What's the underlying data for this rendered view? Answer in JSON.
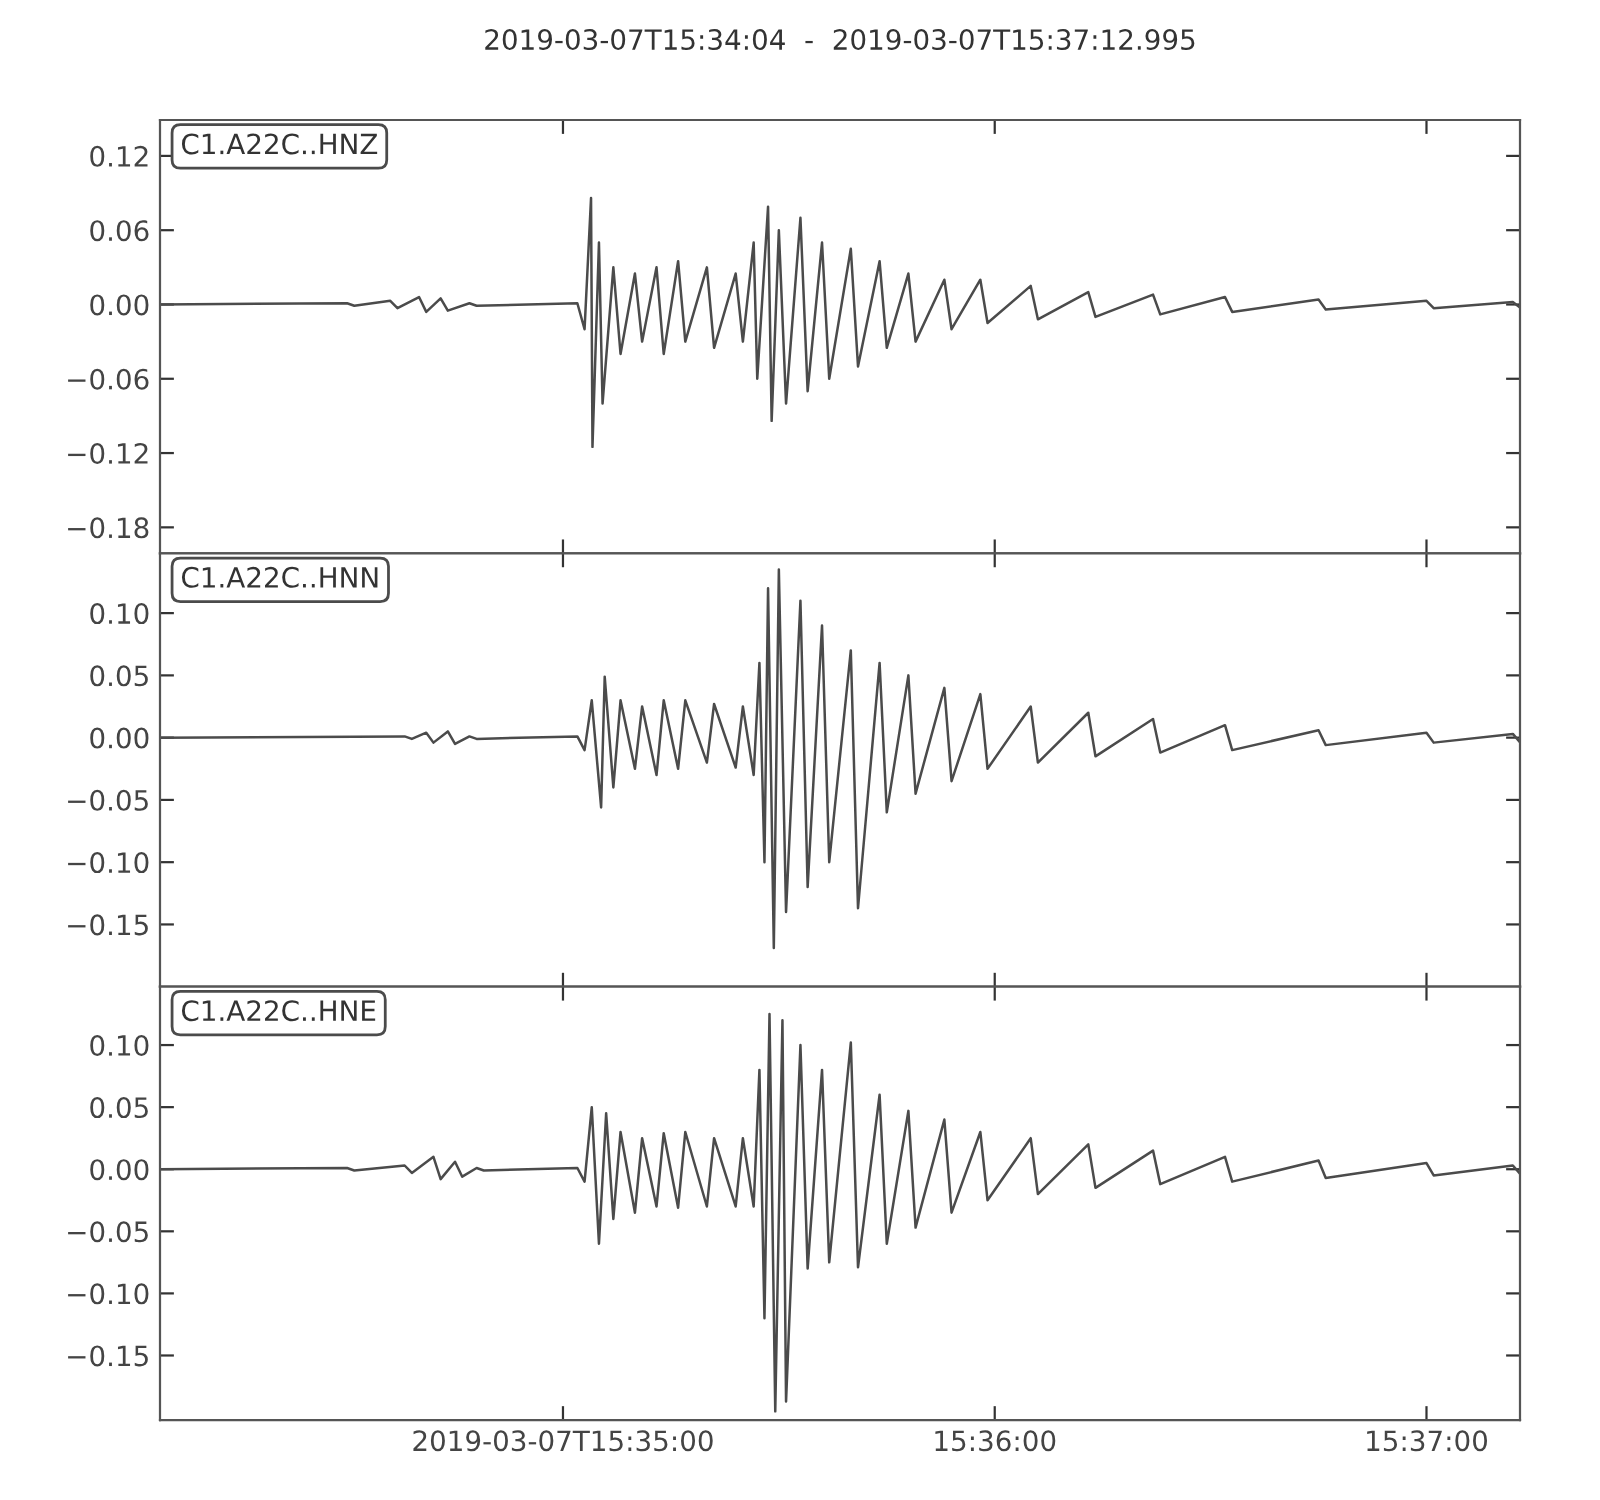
{
  "chart_data": [
    {
      "type": "line",
      "title": "2019-03-07T15:34:04  -  2019-03-07T15:37:12.995",
      "legend": "top left",
      "tick_labels": "y",
      "grid": false,
      "xlim": [
        "2019-03-07T15:34:04",
        "2019-03-07T15:37:12.995"
      ],
      "xticks": [
        {
          "value": "2019-03-07T15:35:00",
          "label": null
        },
        {
          "value": "2019-03-07T15:36:00",
          "label": null
        },
        {
          "value": "2019-03-07T15:37:00",
          "label": null
        }
      ],
      "ylim": [
        -0.201,
        0.149
      ],
      "yticks": [
        0.12,
        0.06,
        {
          "value": 0,
          "label": "0.00"
        },
        {
          "value": -0.06,
          "label": "−0.06"
        },
        {
          "value": -0.12,
          "label": "−0.12"
        },
        {
          "value": -0.18,
          "label": "−0.18"
        }
      ],
      "series": [
        {
          "name": "C1.A22C..HNZ",
          "color": "#4b4b4b",
          "x": [
            "2019-03-07T15:34:04",
            "2019-03-07T15:34:30",
            "2019-03-07T15:34:31",
            "2019-03-07T15:34:36",
            "2019-03-07T15:34:37",
            "2019-03-07T15:34:40",
            "2019-03-07T15:34:41",
            "2019-03-07T15:34:43",
            "2019-03-07T15:34:44",
            "2019-03-07T15:34:47",
            "2019-03-07T15:34:48",
            "2019-03-07T15:35:02",
            "2019-03-07T15:35:03",
            "2019-03-07T15:35:03.9",
            "2019-03-07T15:35:04.1",
            "2019-03-07T15:35:05",
            "2019-03-07T15:35:05.5",
            "2019-03-07T15:35:07",
            "2019-03-07T15:35:08",
            "2019-03-07T15:35:10",
            "2019-03-07T15:35:11",
            "2019-03-07T15:35:13",
            "2019-03-07T15:35:14",
            "2019-03-07T15:35:16",
            "2019-03-07T15:35:17",
            "2019-03-07T15:35:20",
            "2019-03-07T15:35:21",
            "2019-03-07T15:35:24",
            "2019-03-07T15:35:25",
            "2019-03-07T15:35:26.5",
            "2019-03-07T15:35:27",
            "2019-03-07T15:35:28.5",
            "2019-03-07T15:35:29",
            "2019-03-07T15:35:30",
            "2019-03-07T15:35:31",
            "2019-03-07T15:35:33",
            "2019-03-07T15:35:34",
            "2019-03-07T15:35:36",
            "2019-03-07T15:35:37",
            "2019-03-07T15:35:40",
            "2019-03-07T15:35:41",
            "2019-03-07T15:35:44",
            "2019-03-07T15:35:45",
            "2019-03-07T15:35:48",
            "2019-03-07T15:35:49",
            "2019-03-07T15:35:53",
            "2019-03-07T15:35:54",
            "2019-03-07T15:35:58",
            "2019-03-07T15:35:59",
            "2019-03-07T15:36:05",
            "2019-03-07T15:36:06",
            "2019-03-07T15:36:13",
            "2019-03-07T15:36:14",
            "2019-03-07T15:36:22",
            "2019-03-07T15:36:23",
            "2019-03-07T15:36:32",
            "2019-03-07T15:36:33",
            "2019-03-07T15:36:45",
            "2019-03-07T15:36:46",
            "2019-03-07T15:37:00",
            "2019-03-07T15:37:01",
            "2019-03-07T15:37:12",
            "2019-03-07T15:37:12.9"
          ],
          "values": [
            0,
            0.001,
            -0.001,
            0.003,
            -0.003,
            0.006,
            -0.006,
            0.005,
            -0.005,
            0.001,
            -0.001,
            0.001,
            -0.02,
            0.086,
            -0.115,
            0.05,
            -0.08,
            0.03,
            -0.04,
            0.025,
            -0.03,
            0.03,
            -0.04,
            0.035,
            -0.03,
            0.03,
            -0.035,
            0.025,
            -0.03,
            0.05,
            -0.06,
            0.079,
            -0.094,
            0.06,
            -0.08,
            0.07,
            -0.07,
            0.05,
            -0.06,
            0.045,
            -0.05,
            0.035,
            -0.035,
            0.025,
            -0.03,
            0.02,
            -0.02,
            0.02,
            -0.015,
            0.015,
            -0.012,
            0.01,
            -0.01,
            0.008,
            -0.008,
            0.006,
            -0.006,
            0.004,
            -0.004,
            0.003,
            -0.003,
            0.002,
            -0.002
          ]
        }
      ]
    },
    {
      "type": "line",
      "legend": "top left",
      "tick_labels": "y",
      "grid": false,
      "xlim": [
        "2019-03-07T15:34:04",
        "2019-03-07T15:37:12.995"
      ],
      "xticks": [
        {
          "value": "2019-03-07T15:35:00",
          "label": null
        },
        {
          "value": "2019-03-07T15:36:00",
          "label": null
        },
        {
          "value": "2019-03-07T15:37:00",
          "label": null
        }
      ],
      "ylim": [
        -0.2,
        0.148
      ],
      "yticks": [
        {
          "value": 0.1,
          "label": "0.10"
        },
        0.05,
        {
          "value": 0,
          "label": "0.00"
        },
        {
          "value": -0.05,
          "label": "−0.05"
        },
        {
          "value": -0.1,
          "label": "−0.10"
        },
        {
          "value": -0.15,
          "label": "−0.15"
        }
      ],
      "series": [
        {
          "name": "C1.A22C..HNN",
          "color": "#4b4b4b",
          "x": [
            "2019-03-07T15:34:04",
            "2019-03-07T15:34:38",
            "2019-03-07T15:34:39",
            "2019-03-07T15:34:41",
            "2019-03-07T15:34:42",
            "2019-03-07T15:34:44",
            "2019-03-07T15:34:45",
            "2019-03-07T15:34:47",
            "2019-03-07T15:34:48",
            "2019-03-07T15:35:02",
            "2019-03-07T15:35:03",
            "2019-03-07T15:35:04",
            "2019-03-07T15:35:05.3",
            "2019-03-07T15:35:05.8",
            "2019-03-07T15:35:07",
            "2019-03-07T15:35:08",
            "2019-03-07T15:35:10",
            "2019-03-07T15:35:11",
            "2019-03-07T15:35:13",
            "2019-03-07T15:35:14",
            "2019-03-07T15:35:16",
            "2019-03-07T15:35:17",
            "2019-03-07T15:35:20",
            "2019-03-07T15:35:21",
            "2019-03-07T15:35:24",
            "2019-03-07T15:35:25",
            "2019-03-07T15:35:26.5",
            "2019-03-07T15:35:27.3",
            "2019-03-07T15:35:28",
            "2019-03-07T15:35:28.5",
            "2019-03-07T15:35:29.3",
            "2019-03-07T15:35:30",
            "2019-03-07T15:35:31",
            "2019-03-07T15:35:33",
            "2019-03-07T15:35:34",
            "2019-03-07T15:35:36",
            "2019-03-07T15:35:37",
            "2019-03-07T15:35:40",
            "2019-03-07T15:35:41",
            "2019-03-07T15:35:44",
            "2019-03-07T15:35:45",
            "2019-03-07T15:35:48",
            "2019-03-07T15:35:49",
            "2019-03-07T15:35:53",
            "2019-03-07T15:35:54",
            "2019-03-07T15:35:58",
            "2019-03-07T15:35:59",
            "2019-03-07T15:36:05",
            "2019-03-07T15:36:06",
            "2019-03-07T15:36:13",
            "2019-03-07T15:36:14",
            "2019-03-07T15:36:22",
            "2019-03-07T15:36:23",
            "2019-03-07T15:36:32",
            "2019-03-07T15:36:33",
            "2019-03-07T15:36:45",
            "2019-03-07T15:36:46",
            "2019-03-07T15:37:00",
            "2019-03-07T15:37:01",
            "2019-03-07T15:37:12",
            "2019-03-07T15:37:12.9"
          ],
          "values": [
            0,
            0.001,
            -0.001,
            0.004,
            -0.004,
            0.005,
            -0.005,
            0.001,
            -0.001,
            0.001,
            -0.01,
            0.03,
            -0.056,
            0.049,
            -0.04,
            0.03,
            -0.025,
            0.025,
            -0.03,
            0.03,
            -0.025,
            0.03,
            -0.02,
            0.027,
            -0.024,
            0.025,
            -0.03,
            0.06,
            -0.1,
            0.12,
            -0.169,
            0.135,
            -0.14,
            0.11,
            -0.12,
            0.09,
            -0.1,
            0.07,
            -0.137,
            0.06,
            -0.06,
            0.05,
            -0.045,
            0.04,
            -0.035,
            0.035,
            -0.025,
            0.025,
            -0.02,
            0.02,
            -0.015,
            0.015,
            -0.012,
            0.01,
            -0.01,
            0.006,
            -0.006,
            0.004,
            -0.004,
            0.003,
            -0.003
          ]
        }
      ]
    },
    {
      "type": "line",
      "legend": "top left",
      "grid": false,
      "xlim": [
        "2019-03-07T15:34:04",
        "2019-03-07T15:37:12.995"
      ],
      "xticks": [
        {
          "value": "2019-03-07T15:35:00",
          "label": "2019-03-07T15:35:00"
        },
        {
          "value": "2019-03-07T15:36:00",
          "label": "15:36:00"
        },
        {
          "value": "2019-03-07T15:37:00",
          "label": "15:37:00"
        }
      ],
      "ylim": [
        -0.202,
        0.147
      ],
      "yticks": [
        {
          "value": 0.1,
          "label": "0.10"
        },
        0.05,
        {
          "value": 0,
          "label": "0.00"
        },
        {
          "value": -0.05,
          "label": "−0.05"
        },
        {
          "value": -0.1,
          "label": "−0.10"
        },
        {
          "value": -0.15,
          "label": "−0.15"
        }
      ],
      "series": [
        {
          "name": "C1.A22C..HNE",
          "color": "#4b4b4b",
          "x": [
            "2019-03-07T15:34:04",
            "2019-03-07T15:34:30",
            "2019-03-07T15:34:31",
            "2019-03-07T15:34:38",
            "2019-03-07T15:34:39",
            "2019-03-07T15:34:42",
            "2019-03-07T15:34:43",
            "2019-03-07T15:34:45",
            "2019-03-07T15:34:46",
            "2019-03-07T15:34:48",
            "2019-03-07T15:34:49",
            "2019-03-07T15:35:02",
            "2019-03-07T15:35:03",
            "2019-03-07T15:35:04",
            "2019-03-07T15:35:05",
            "2019-03-07T15:35:06",
            "2019-03-07T15:35:07",
            "2019-03-07T15:35:08",
            "2019-03-07T15:35:10",
            "2019-03-07T15:35:11",
            "2019-03-07T15:35:13",
            "2019-03-07T15:35:14",
            "2019-03-07T15:35:16",
            "2019-03-07T15:35:17",
            "2019-03-07T15:35:20",
            "2019-03-07T15:35:21",
            "2019-03-07T15:35:24",
            "2019-03-07T15:35:25",
            "2019-03-07T15:35:26.5",
            "2019-03-07T15:35:27.3",
            "2019-03-07T15:35:28",
            "2019-03-07T15:35:28.7",
            "2019-03-07T15:35:29.5",
            "2019-03-07T15:35:30.5",
            "2019-03-07T15:35:31",
            "2019-03-07T15:35:33",
            "2019-03-07T15:35:34",
            "2019-03-07T15:35:36",
            "2019-03-07T15:35:37",
            "2019-03-07T15:35:40",
            "2019-03-07T15:35:41",
            "2019-03-07T15:35:44",
            "2019-03-07T15:35:45",
            "2019-03-07T15:35:48",
            "2019-03-07T15:35:49",
            "2019-03-07T15:35:53",
            "2019-03-07T15:35:54",
            "2019-03-07T15:35:58",
            "2019-03-07T15:35:59",
            "2019-03-07T15:36:05",
            "2019-03-07T15:36:06",
            "2019-03-07T15:36:13",
            "2019-03-07T15:36:14",
            "2019-03-07T15:36:22",
            "2019-03-07T15:36:23",
            "2019-03-07T15:36:32",
            "2019-03-07T15:36:33",
            "2019-03-07T15:36:45",
            "2019-03-07T15:36:46",
            "2019-03-07T15:37:00",
            "2019-03-07T15:37:01",
            "2019-03-07T15:37:12",
            "2019-03-07T15:37:12.9"
          ],
          "values": [
            0,
            0.001,
            -0.001,
            0.003,
            -0.003,
            0.01,
            -0.008,
            0.006,
            -0.006,
            0.001,
            -0.001,
            0.001,
            -0.01,
            0.05,
            -0.06,
            0.045,
            -0.04,
            0.03,
            -0.035,
            0.025,
            -0.03,
            0.029,
            -0.031,
            0.03,
            -0.03,
            0.025,
            -0.03,
            0.025,
            -0.03,
            0.08,
            -0.12,
            0.125,
            -0.195,
            0.12,
            -0.187,
            0.1,
            -0.08,
            0.08,
            -0.075,
            0.102,
            -0.079,
            0.06,
            -0.06,
            0.047,
            -0.047,
            0.04,
            -0.035,
            0.03,
            -0.025,
            0.025,
            -0.02,
            0.02,
            -0.015,
            0.015,
            -0.012,
            0.01,
            -0.01,
            0.007,
            -0.007,
            0.005,
            -0.005,
            0.003,
            -0.003
          ]
        }
      ]
    }
  ]
}
